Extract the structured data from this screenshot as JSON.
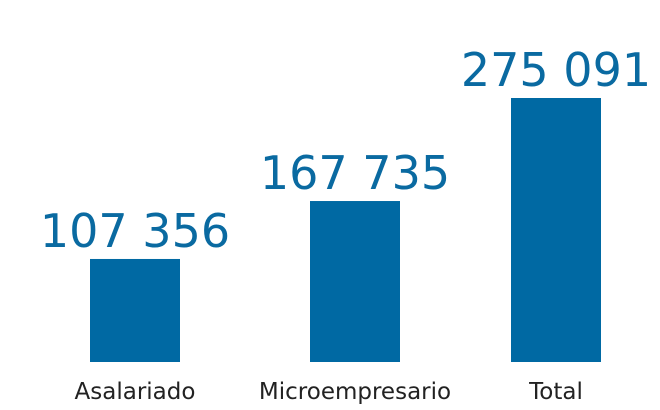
{
  "chart_data": {
    "type": "bar",
    "categories": [
      "Asalariado",
      "Microempresario",
      "Total"
    ],
    "values": [
      107356,
      167735,
      275091
    ],
    "value_labels": [
      "107 356",
      "167 735",
      "275 091"
    ],
    "color": "#0069a3"
  }
}
